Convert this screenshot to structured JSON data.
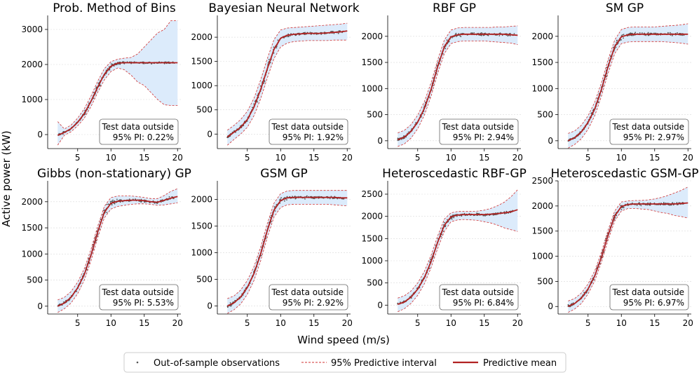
{
  "figure": {
    "xlabel": "Wind speed (m/s)",
    "ylabel": "Active power (kW)",
    "legend": {
      "placement": "bottom-center",
      "entries": [
        {
          "label": "Out-of-sample observations",
          "kind": "points",
          "color": "#555555"
        },
        {
          "label": "95% Predictive interval",
          "kind": "dashed",
          "color": "#c0392b"
        },
        {
          "label": "Predictive mean",
          "kind": "line",
          "color": "#b22222"
        }
      ]
    },
    "annotation_line1": "Test data outside"
  },
  "colors": {
    "points": "#555555",
    "interval_line": "#d03030",
    "interval_fill": "#dcebfb",
    "mean": "#b22222",
    "grid": "#d9d9d9"
  },
  "chart_data": [
    {
      "type": "line",
      "title": "Prob. Method of Bins",
      "annotation": "95% PI: 0.22%",
      "xlim": [
        0.5,
        20.5
      ],
      "ylim": [
        -400,
        3400
      ],
      "xticks": [
        5,
        10,
        15,
        20
      ],
      "yticks": [
        0,
        1000,
        2000,
        3000
      ],
      "x": [
        2,
        3,
        4,
        5,
        6,
        7,
        8,
        9,
        10,
        11,
        12,
        13,
        14,
        15,
        16,
        17,
        18,
        19,
        20
      ],
      "mean": [
        -20,
        60,
        170,
        350,
        600,
        950,
        1350,
        1720,
        1950,
        2040,
        2050,
        2050,
        2050,
        2050,
        2050,
        2050,
        2050,
        2050,
        2050
      ],
      "upper": [
        370,
        160,
        270,
        470,
        740,
        1100,
        1520,
        1880,
        2080,
        2150,
        2180,
        2200,
        2300,
        2500,
        2700,
        2900,
        3000,
        3250,
        3250
      ],
      "lower": [
        -300,
        -20,
        80,
        250,
        470,
        800,
        1200,
        1560,
        1800,
        1900,
        1850,
        1700,
        1500,
        1400,
        1200,
        1000,
        850,
        830,
        830
      ],
      "grid": true
    },
    {
      "type": "line",
      "title": "Bayesian Neural Network",
      "annotation": "95% PI: 1.92%",
      "xlim": [
        0.5,
        20.5
      ],
      "ylim": [
        -300,
        2450
      ],
      "xticks": [
        5,
        10,
        15,
        20
      ],
      "yticks": [
        0,
        500,
        1000,
        1500,
        2000
      ],
      "x": [
        2,
        3,
        4,
        5,
        6,
        7,
        8,
        9,
        10,
        11,
        12,
        13,
        14,
        15,
        16,
        17,
        18,
        19,
        20
      ],
      "mean": [
        -60,
        40,
        140,
        300,
        560,
        920,
        1350,
        1750,
        1980,
        2040,
        2060,
        2070,
        2080,
        2080,
        2080,
        2090,
        2100,
        2110,
        2130
      ],
      "upper": [
        80,
        180,
        300,
        470,
        740,
        1120,
        1560,
        1950,
        2150,
        2190,
        2200,
        2210,
        2220,
        2230,
        2240,
        2250,
        2260,
        2270,
        2290
      ],
      "lower": [
        -230,
        -110,
        0,
        140,
        380,
        730,
        1160,
        1560,
        1800,
        1880,
        1910,
        1920,
        1930,
        1930,
        1930,
        1930,
        1940,
        1940,
        1940
      ],
      "grid": true
    },
    {
      "type": "line",
      "title": "RBF GP",
      "annotation": "95% PI: 2.94%",
      "xlim": [
        0.5,
        20.5
      ],
      "ylim": [
        -150,
        2400
      ],
      "xticks": [
        5,
        10,
        15,
        20
      ],
      "yticks": [
        0,
        500,
        1000,
        1500,
        2000
      ],
      "x": [
        2,
        3,
        4,
        5,
        6,
        7,
        8,
        9,
        10,
        11,
        12,
        13,
        14,
        15,
        16,
        17,
        18,
        19,
        20
      ],
      "mean": [
        20,
        70,
        180,
        360,
        620,
        980,
        1420,
        1800,
        1990,
        2030,
        2040,
        2040,
        2040,
        2040,
        2040,
        2040,
        2040,
        2030,
        2020
      ],
      "upper": [
        150,
        200,
        310,
        490,
        750,
        1110,
        1550,
        1930,
        2120,
        2160,
        2170,
        2170,
        2170,
        2170,
        2170,
        2180,
        2180,
        2190,
        2200
      ],
      "lower": [
        -110,
        -60,
        50,
        230,
        490,
        850,
        1290,
        1670,
        1860,
        1900,
        1910,
        1910,
        1910,
        1910,
        1900,
        1890,
        1880,
        1870,
        1840
      ],
      "grid": true
    },
    {
      "type": "line",
      "title": "SM GP",
      "annotation": "95% PI: 2.97%",
      "xlim": [
        0.5,
        20.5
      ],
      "ylim": [
        -150,
        2400
      ],
      "xticks": [
        5,
        10,
        15,
        20
      ],
      "yticks": [
        0,
        500,
        1000,
        1500,
        2000
      ],
      "x": [
        2,
        3,
        4,
        5,
        6,
        7,
        8,
        9,
        10,
        11,
        12,
        13,
        14,
        15,
        16,
        17,
        18,
        19,
        20
      ],
      "mean": [
        0,
        60,
        170,
        350,
        610,
        980,
        1420,
        1800,
        1990,
        2030,
        2040,
        2040,
        2040,
        2040,
        2040,
        2040,
        2040,
        2040,
        2040
      ],
      "upper": [
        140,
        190,
        300,
        480,
        740,
        1110,
        1550,
        1930,
        2130,
        2170,
        2180,
        2180,
        2180,
        2180,
        2190,
        2200,
        2210,
        2220,
        2240
      ],
      "lower": [
        -140,
        -70,
        40,
        220,
        480,
        850,
        1290,
        1670,
        1860,
        1890,
        1900,
        1900,
        1900,
        1900,
        1900,
        1890,
        1880,
        1870,
        1850
      ],
      "grid": true
    },
    {
      "type": "line",
      "title": "Gibbs (non-stationary) GP",
      "annotation": "95% PI: 5.53%",
      "xlim": [
        0.5,
        20.5
      ],
      "ylim": [
        -150,
        2400
      ],
      "xticks": [
        5,
        10,
        15,
        20
      ],
      "yticks": [
        0,
        500,
        1000,
        1500,
        2000
      ],
      "x": [
        2,
        3,
        4,
        5,
        6,
        7,
        8,
        9,
        10,
        11,
        12,
        13,
        14,
        15,
        16,
        17,
        18,
        19,
        20
      ],
      "mean": [
        0,
        60,
        170,
        350,
        610,
        980,
        1420,
        1800,
        1970,
        2010,
        2020,
        2030,
        2030,
        2020,
        2000,
        1990,
        2030,
        2070,
        2100
      ],
      "upper": [
        120,
        170,
        280,
        460,
        720,
        1090,
        1530,
        1910,
        2080,
        2110,
        2110,
        2110,
        2100,
        2080,
        2060,
        2060,
        2120,
        2200,
        2250
      ],
      "lower": [
        -120,
        -50,
        60,
        240,
        500,
        870,
        1310,
        1690,
        1860,
        1910,
        1930,
        1950,
        1960,
        1960,
        1950,
        1930,
        1940,
        1960,
        1980
      ],
      "grid": true
    },
    {
      "type": "line",
      "title": "GSM GP",
      "annotation": "95% PI: 2.92%",
      "xlim": [
        0.5,
        20.5
      ],
      "ylim": [
        -150,
        2350
      ],
      "xticks": [
        5,
        10,
        15,
        20
      ],
      "yticks": [
        0,
        500,
        1000,
        1500,
        2000
      ],
      "x": [
        2,
        3,
        4,
        5,
        6,
        7,
        8,
        9,
        10,
        11,
        12,
        13,
        14,
        15,
        16,
        17,
        18,
        19,
        20
      ],
      "mean": [
        0,
        60,
        170,
        350,
        610,
        980,
        1420,
        1800,
        1980,
        2030,
        2040,
        2040,
        2040,
        2040,
        2040,
        2040,
        2040,
        2030,
        2030
      ],
      "upper": [
        140,
        190,
        300,
        480,
        740,
        1110,
        1550,
        1930,
        2110,
        2160,
        2170,
        2170,
        2170,
        2170,
        2170,
        2170,
        2170,
        2170,
        2170
      ],
      "lower": [
        -140,
        -70,
        40,
        220,
        480,
        850,
        1290,
        1670,
        1850,
        1900,
        1910,
        1910,
        1910,
        1910,
        1910,
        1910,
        1900,
        1890,
        1880
      ],
      "grid": true
    },
    {
      "type": "line",
      "title": "Heteroscedastic RBF-GP",
      "annotation": "95% PI: 6.84%",
      "xlim": [
        0.5,
        20.5
      ],
      "ylim": [
        -200,
        2800
      ],
      "xticks": [
        5,
        10,
        15,
        20
      ],
      "yticks": [
        0,
        500,
        1000,
        1500,
        2000,
        2500
      ],
      "x": [
        2,
        3,
        4,
        5,
        6,
        7,
        8,
        9,
        10,
        11,
        12,
        13,
        14,
        15,
        16,
        17,
        18,
        19,
        20
      ],
      "mean": [
        20,
        70,
        180,
        360,
        620,
        980,
        1420,
        1800,
        1990,
        2030,
        2040,
        2040,
        2040,
        2040,
        2050,
        2060,
        2080,
        2100,
        2150
      ],
      "upper": [
        160,
        210,
        320,
        500,
        760,
        1120,
        1560,
        1940,
        2080,
        2110,
        2110,
        2110,
        2120,
        2140,
        2180,
        2240,
        2320,
        2440,
        2600
      ],
      "lower": [
        -150,
        -80,
        40,
        220,
        480,
        840,
        1280,
        1660,
        1880,
        1920,
        1930,
        1920,
        1910,
        1880,
        1850,
        1800,
        1740,
        1700,
        1660
      ],
      "grid": true
    },
    {
      "type": "line",
      "title": "Heteroscedastic GSM-GP",
      "annotation": "95% PI: 6.97%",
      "xlim": [
        0.5,
        20.5
      ],
      "ylim": [
        -150,
        2500
      ],
      "xticks": [
        5,
        10,
        15,
        20
      ],
      "yticks": [
        0,
        500,
        1000,
        1500,
        2000,
        2500
      ],
      "x": [
        2,
        3,
        4,
        5,
        6,
        7,
        8,
        9,
        10,
        11,
        12,
        13,
        14,
        15,
        16,
        17,
        18,
        19,
        20
      ],
      "mean": [
        0,
        60,
        170,
        350,
        610,
        980,
        1420,
        1800,
        1990,
        2030,
        2040,
        2040,
        2040,
        2040,
        2040,
        2040,
        2040,
        2050,
        2060
      ],
      "upper": [
        110,
        160,
        270,
        450,
        710,
        1080,
        1520,
        1900,
        2080,
        2100,
        2110,
        2110,
        2120,
        2140,
        2170,
        2210,
        2260,
        2310,
        2380
      ],
      "lower": [
        -120,
        -50,
        60,
        250,
        510,
        880,
        1320,
        1700,
        1900,
        1950,
        1950,
        1940,
        1930,
        1900,
        1870,
        1850,
        1810,
        1790,
        1760
      ],
      "grid": true
    }
  ]
}
